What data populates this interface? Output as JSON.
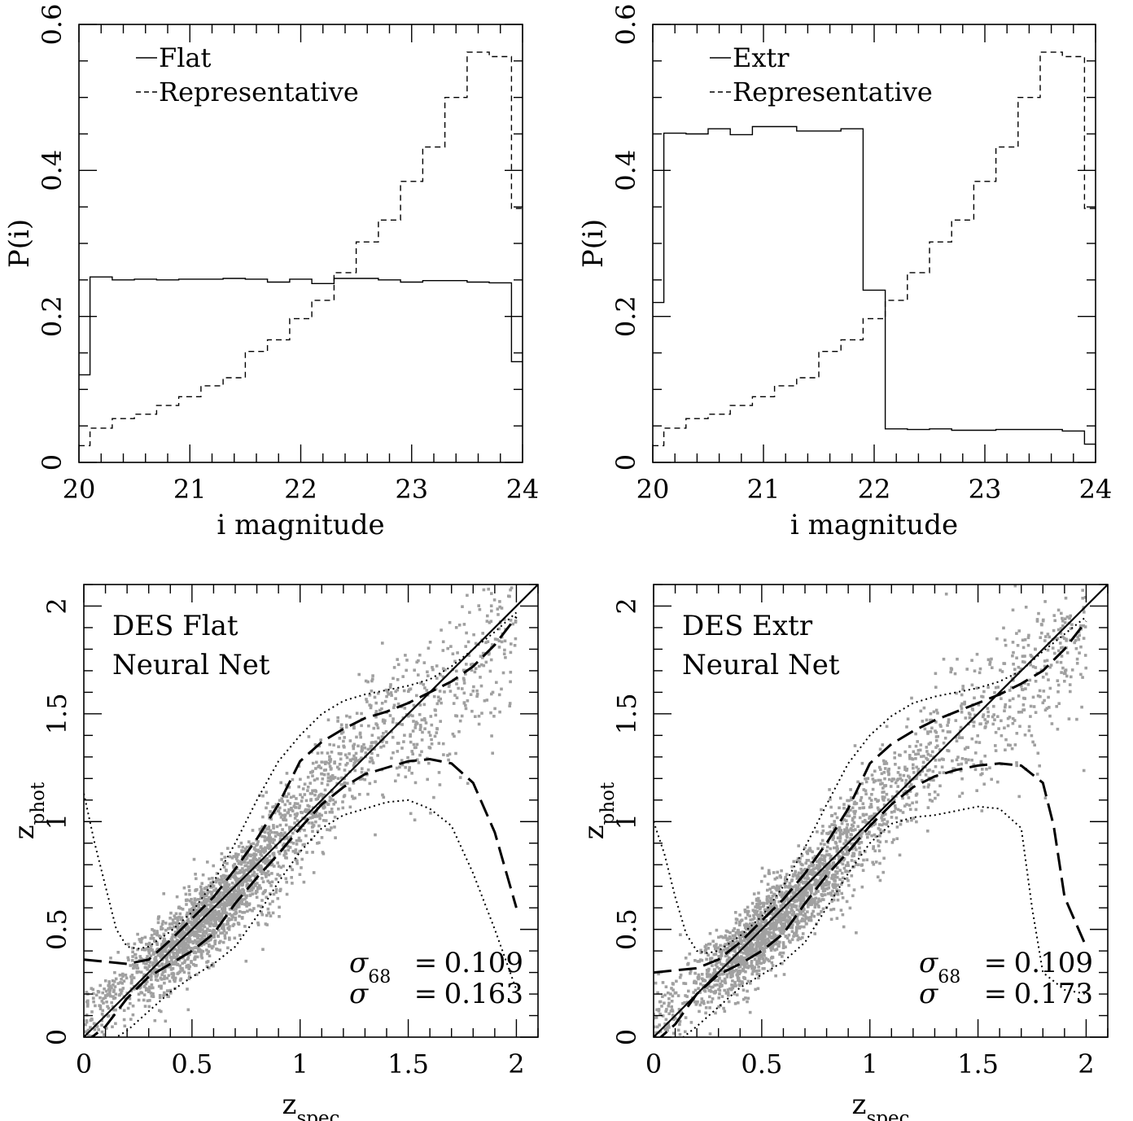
{
  "chart_data": [
    {
      "type": "line",
      "style": "step",
      "xlabel": "i magnitude",
      "ylabel": "P(i)",
      "xlim": [
        20,
        24
      ],
      "ylim": [
        0,
        0.6
      ],
      "xticks": [
        20,
        21,
        22,
        23,
        24
      ],
      "yticks": [
        0,
        0.2,
        0.4,
        0.6
      ],
      "legend": "top-left",
      "bin_edges": [
        20.0,
        20.1,
        20.3,
        20.5,
        20.7,
        20.9,
        21.1,
        21.3,
        21.5,
        21.7,
        21.9,
        22.1,
        22.3,
        22.5,
        22.7,
        22.9,
        23.1,
        23.3,
        23.5,
        23.7,
        23.9,
        24.0
      ],
      "series": [
        {
          "name": "Flat",
          "dash": "solid",
          "values": [
            0.12,
            0.254,
            0.25,
            0.251,
            0.25,
            0.251,
            0.251,
            0.252,
            0.251,
            0.247,
            0.251,
            0.245,
            0.252,
            0.252,
            0.25,
            0.247,
            0.249,
            0.249,
            0.247,
            0.246,
            0.138
          ]
        },
        {
          "name": "Representative",
          "dash": "short-dash",
          "values": [
            0.023,
            0.047,
            0.06,
            0.066,
            0.078,
            0.09,
            0.105,
            0.116,
            0.152,
            0.168,
            0.197,
            0.222,
            0.26,
            0.302,
            0.332,
            0.385,
            0.432,
            0.5,
            0.562,
            0.556,
            0.348
          ]
        }
      ]
    },
    {
      "type": "line",
      "style": "step",
      "xlabel": "i magnitude",
      "ylabel": "P(i)",
      "xlim": [
        20,
        24
      ],
      "ylim": [
        0,
        0.6
      ],
      "xticks": [
        20,
        21,
        22,
        23,
        24
      ],
      "yticks": [
        0,
        0.2,
        0.4,
        0.6
      ],
      "legend": "top-left",
      "bin_edges": [
        20.0,
        20.1,
        20.3,
        20.5,
        20.7,
        20.9,
        21.1,
        21.3,
        21.5,
        21.7,
        21.9,
        22.1,
        22.3,
        22.5,
        22.7,
        22.9,
        23.1,
        23.3,
        23.5,
        23.7,
        23.9,
        24.0
      ],
      "series": [
        {
          "name": "Extr",
          "dash": "solid",
          "values": [
            0.219,
            0.451,
            0.45,
            0.457,
            0.449,
            0.46,
            0.46,
            0.454,
            0.454,
            0.457,
            0.236,
            0.046,
            0.045,
            0.046,
            0.044,
            0.044,
            0.045,
            0.045,
            0.045,
            0.043,
            0.025
          ]
        },
        {
          "name": "Representative",
          "dash": "short-dash",
          "values": [
            0.023,
            0.047,
            0.06,
            0.066,
            0.078,
            0.09,
            0.105,
            0.116,
            0.152,
            0.168,
            0.197,
            0.222,
            0.26,
            0.302,
            0.332,
            0.385,
            0.432,
            0.5,
            0.562,
            0.556,
            0.348
          ]
        }
      ]
    },
    {
      "type": "scatter",
      "xlabel": "z",
      "xlabel_sub": "spec",
      "ylabel": "z",
      "ylabel_sub": "phot",
      "xlim": [
        0,
        2.1
      ],
      "ylim": [
        0,
        2.1
      ],
      "xticks": [
        0,
        0.5,
        1,
        1.5,
        2
      ],
      "yticks": [
        0,
        0.5,
        1,
        1.5,
        2
      ],
      "labels": [
        "DES Flat",
        "Neural Net"
      ],
      "stats": [
        {
          "symbol": "σ",
          "sub": "68",
          "eq": "=",
          "value": "0.109"
        },
        {
          "symbol": "σ",
          "sub": "",
          "eq": "=",
          "value": "0.163"
        }
      ],
      "scatter": {
        "color": "#a0a0a0",
        "trend": [
          [
            0,
            0.06
          ],
          [
            0.2,
            0.25
          ],
          [
            0.4,
            0.4
          ],
          [
            0.6,
            0.58
          ],
          [
            0.8,
            0.78
          ],
          [
            1.0,
            1.02
          ],
          [
            1.2,
            1.24
          ],
          [
            1.4,
            1.43
          ],
          [
            1.6,
            1.52
          ],
          [
            1.8,
            1.7
          ],
          [
            2.0,
            1.9
          ]
        ]
      },
      "lines": [
        {
          "role": "identity",
          "dash": "solid",
          "points": [
            [
              0,
              0
            ],
            [
              2.1,
              2.1
            ]
          ]
        },
        {
          "role": "upper-68",
          "dash": "long-dash",
          "points": [
            [
              0,
              0.36
            ],
            [
              0.2,
              0.34
            ],
            [
              0.3,
              0.36
            ],
            [
              0.4,
              0.45
            ],
            [
              0.5,
              0.55
            ],
            [
              0.6,
              0.65
            ],
            [
              0.7,
              0.78
            ],
            [
              0.8,
              0.92
            ],
            [
              0.9,
              1.08
            ],
            [
              1.0,
              1.28
            ],
            [
              1.1,
              1.37
            ],
            [
              1.2,
              1.43
            ],
            [
              1.3,
              1.48
            ],
            [
              1.4,
              1.51
            ],
            [
              1.5,
              1.55
            ],
            [
              1.6,
              1.6
            ],
            [
              1.7,
              1.65
            ],
            [
              1.8,
              1.72
            ],
            [
              1.9,
              1.82
            ],
            [
              2.0,
              1.95
            ]
          ]
        },
        {
          "role": "lower-68",
          "dash": "long-dash",
          "points": [
            [
              0,
              -0.03
            ],
            [
              0.1,
              0.05
            ],
            [
              0.2,
              0.18
            ],
            [
              0.3,
              0.28
            ],
            [
              0.4,
              0.34
            ],
            [
              0.5,
              0.4
            ],
            [
              0.6,
              0.48
            ],
            [
              0.7,
              0.62
            ],
            [
              0.8,
              0.74
            ],
            [
              0.9,
              0.85
            ],
            [
              1.0,
              0.97
            ],
            [
              1.1,
              1.08
            ],
            [
              1.2,
              1.16
            ],
            [
              1.3,
              1.22
            ],
            [
              1.4,
              1.25
            ],
            [
              1.5,
              1.28
            ],
            [
              1.6,
              1.29
            ],
            [
              1.7,
              1.27
            ],
            [
              1.8,
              1.18
            ],
            [
              1.9,
              0.95
            ],
            [
              2.0,
              0.6
            ]
          ]
        },
        {
          "role": "upper-95",
          "dash": "dotted",
          "points": [
            [
              0,
              1.13
            ],
            [
              0.05,
              0.9
            ],
            [
              0.1,
              0.7
            ],
            [
              0.15,
              0.5
            ],
            [
              0.2,
              0.42
            ],
            [
              0.25,
              0.41
            ],
            [
              0.3,
              0.42
            ],
            [
              0.4,
              0.49
            ],
            [
              0.5,
              0.58
            ],
            [
              0.6,
              0.72
            ],
            [
              0.7,
              0.9
            ],
            [
              0.8,
              1.1
            ],
            [
              0.9,
              1.28
            ],
            [
              1.0,
              1.4
            ],
            [
              1.1,
              1.5
            ],
            [
              1.2,
              1.56
            ],
            [
              1.3,
              1.59
            ],
            [
              1.4,
              1.61
            ],
            [
              1.5,
              1.63
            ],
            [
              1.6,
              1.66
            ],
            [
              1.7,
              1.72
            ],
            [
              1.8,
              1.8
            ],
            [
              1.9,
              1.88
            ],
            [
              2.0,
              1.97
            ]
          ]
        },
        {
          "role": "lower-95",
          "dash": "dotted",
          "points": [
            [
              0.1,
              -0.03
            ],
            [
              0.2,
              0.03
            ],
            [
              0.3,
              0.12
            ],
            [
              0.4,
              0.21
            ],
            [
              0.5,
              0.28
            ],
            [
              0.6,
              0.34
            ],
            [
              0.7,
              0.42
            ],
            [
              0.8,
              0.56
            ],
            [
              0.9,
              0.72
            ],
            [
              1.0,
              0.86
            ],
            [
              1.1,
              0.97
            ],
            [
              1.2,
              1.03
            ],
            [
              1.3,
              1.06
            ],
            [
              1.4,
              1.09
            ],
            [
              1.5,
              1.1
            ],
            [
              1.6,
              1.06
            ],
            [
              1.7,
              0.98
            ],
            [
              1.8,
              0.76
            ],
            [
              1.9,
              0.5
            ],
            [
              2.0,
              0.22
            ]
          ]
        }
      ]
    },
    {
      "type": "scatter",
      "xlabel": "z",
      "xlabel_sub": "spec",
      "ylabel": "z",
      "ylabel_sub": "phot",
      "xlim": [
        0,
        2.1
      ],
      "ylim": [
        0,
        2.1
      ],
      "xticks": [
        0,
        0.5,
        1,
        1.5,
        2
      ],
      "yticks": [
        0,
        0.5,
        1,
        1.5,
        2
      ],
      "labels": [
        "DES Extr",
        "Neural Net"
      ],
      "stats": [
        {
          "symbol": "σ",
          "sub": "68",
          "eq": "=",
          "value": "0.109"
        },
        {
          "symbol": "σ",
          "sub": "",
          "eq": "=",
          "value": "0.173"
        }
      ],
      "scatter": {
        "color": "#a0a0a0",
        "trend": [
          [
            0,
            0.06
          ],
          [
            0.2,
            0.25
          ],
          [
            0.4,
            0.4
          ],
          [
            0.6,
            0.57
          ],
          [
            0.8,
            0.78
          ],
          [
            1.0,
            1.02
          ],
          [
            1.2,
            1.23
          ],
          [
            1.4,
            1.42
          ],
          [
            1.6,
            1.5
          ],
          [
            1.8,
            1.68
          ],
          [
            2.0,
            1.88
          ]
        ]
      },
      "lines": [
        {
          "role": "identity",
          "dash": "solid",
          "points": [
            [
              0,
              0
            ],
            [
              2.1,
              2.1
            ]
          ]
        },
        {
          "role": "upper-68",
          "dash": "long-dash",
          "points": [
            [
              0,
              0.3
            ],
            [
              0.2,
              0.32
            ],
            [
              0.3,
              0.36
            ],
            [
              0.4,
              0.44
            ],
            [
              0.5,
              0.54
            ],
            [
              0.6,
              0.64
            ],
            [
              0.7,
              0.76
            ],
            [
              0.8,
              0.9
            ],
            [
              0.9,
              1.06
            ],
            [
              1.0,
              1.27
            ],
            [
              1.1,
              1.36
            ],
            [
              1.2,
              1.42
            ],
            [
              1.3,
              1.47
            ],
            [
              1.4,
              1.51
            ],
            [
              1.5,
              1.55
            ],
            [
              1.6,
              1.59
            ],
            [
              1.7,
              1.64
            ],
            [
              1.8,
              1.7
            ],
            [
              1.9,
              1.8
            ],
            [
              2.0,
              1.93
            ]
          ]
        },
        {
          "role": "lower-68",
          "dash": "long-dash",
          "points": [
            [
              0,
              -0.03
            ],
            [
              0.1,
              0.06
            ],
            [
              0.2,
              0.2
            ],
            [
              0.3,
              0.29
            ],
            [
              0.4,
              0.34
            ],
            [
              0.5,
              0.4
            ],
            [
              0.6,
              0.48
            ],
            [
              0.7,
              0.62
            ],
            [
              0.8,
              0.75
            ],
            [
              0.9,
              0.86
            ],
            [
              1.0,
              0.98
            ],
            [
              1.1,
              1.08
            ],
            [
              1.2,
              1.16
            ],
            [
              1.3,
              1.21
            ],
            [
              1.4,
              1.24
            ],
            [
              1.5,
              1.26
            ],
            [
              1.6,
              1.27
            ],
            [
              1.7,
              1.26
            ],
            [
              1.8,
              1.18
            ],
            [
              1.85,
              0.98
            ],
            [
              1.9,
              0.65
            ],
            [
              2.0,
              0.42
            ]
          ]
        },
        {
          "role": "upper-95",
          "dash": "dotted",
          "points": [
            [
              0,
              1.0
            ],
            [
              0.05,
              0.85
            ],
            [
              0.1,
              0.65
            ],
            [
              0.15,
              0.48
            ],
            [
              0.2,
              0.4
            ],
            [
              0.25,
              0.39
            ],
            [
              0.3,
              0.4
            ],
            [
              0.4,
              0.47
            ],
            [
              0.5,
              0.56
            ],
            [
              0.6,
              0.7
            ],
            [
              0.7,
              0.88
            ],
            [
              0.8,
              1.08
            ],
            [
              0.9,
              1.27
            ],
            [
              1.0,
              1.4
            ],
            [
              1.1,
              1.49
            ],
            [
              1.2,
              1.55
            ],
            [
              1.3,
              1.58
            ],
            [
              1.4,
              1.6
            ],
            [
              1.5,
              1.62
            ],
            [
              1.6,
              1.65
            ],
            [
              1.7,
              1.7
            ],
            [
              1.8,
              1.79
            ],
            [
              1.9,
              1.87
            ],
            [
              2.0,
              1.95
            ]
          ]
        },
        {
          "role": "lower-95",
          "dash": "dotted",
          "points": [
            [
              0.1,
              -0.03
            ],
            [
              0.2,
              0.05
            ],
            [
              0.3,
              0.14
            ],
            [
              0.4,
              0.23
            ],
            [
              0.5,
              0.29
            ],
            [
              0.6,
              0.35
            ],
            [
              0.7,
              0.44
            ],
            [
              0.8,
              0.6
            ],
            [
              0.9,
              0.76
            ],
            [
              1.0,
              0.9
            ],
            [
              1.1,
              0.99
            ],
            [
              1.2,
              1.02
            ],
            [
              1.3,
              1.03
            ],
            [
              1.4,
              1.05
            ],
            [
              1.5,
              1.07
            ],
            [
              1.6,
              1.06
            ],
            [
              1.7,
              0.97
            ],
            [
              1.75,
              0.6
            ],
            [
              1.8,
              0.3
            ],
            [
              1.9,
              0.22
            ],
            [
              2.0,
              0.2
            ]
          ]
        }
      ]
    }
  ]
}
